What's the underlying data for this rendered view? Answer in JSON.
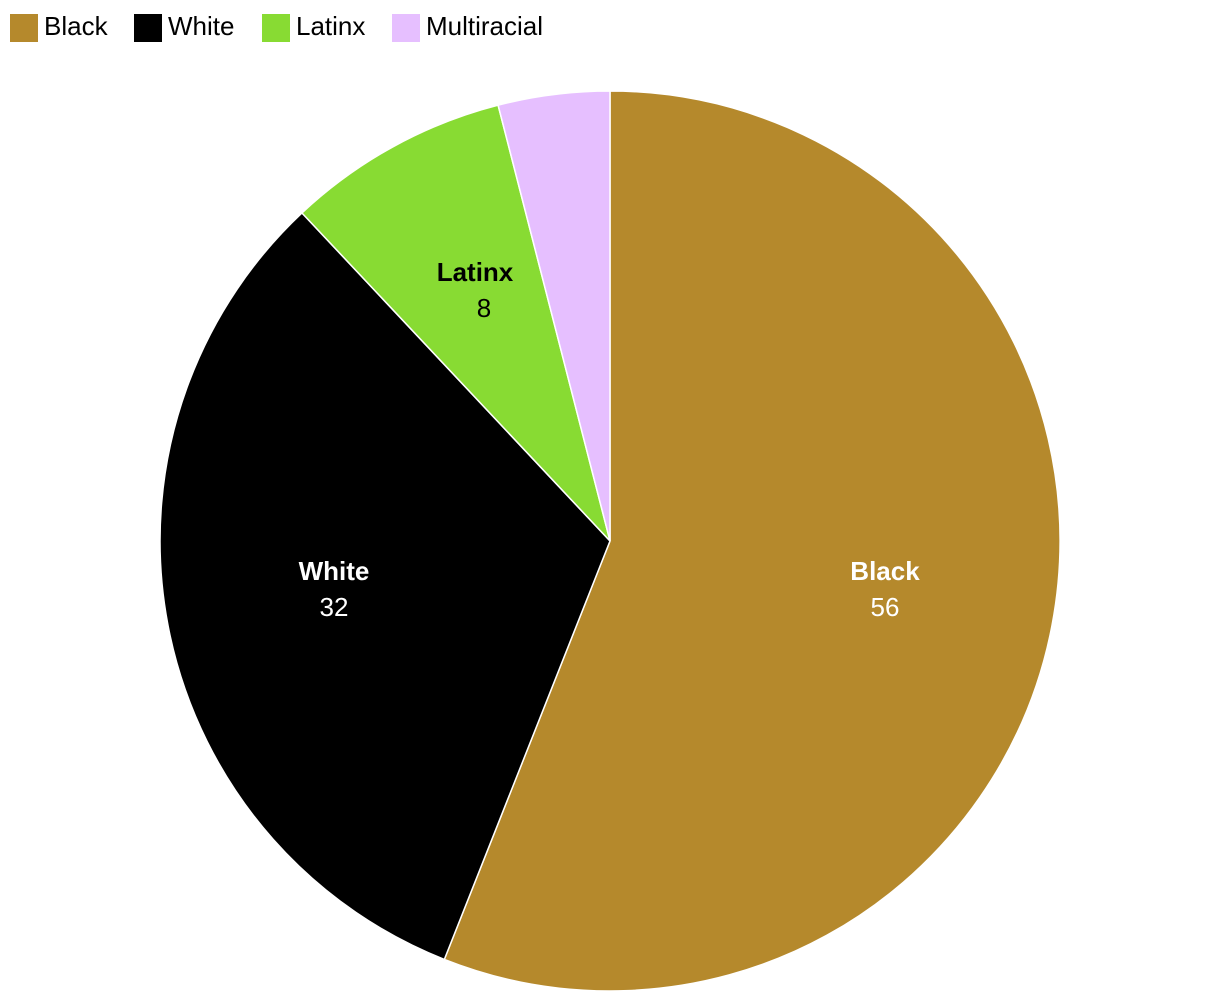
{
  "chart_data": {
    "type": "pie",
    "categories": [
      "Black",
      "White",
      "Latinx",
      "Multiracial"
    ],
    "values": [
      56,
      32,
      8,
      4
    ],
    "colors": [
      "#b5892c",
      "#000000",
      "#88db33",
      "#e6bfff"
    ],
    "legend": "top-left"
  }
}
